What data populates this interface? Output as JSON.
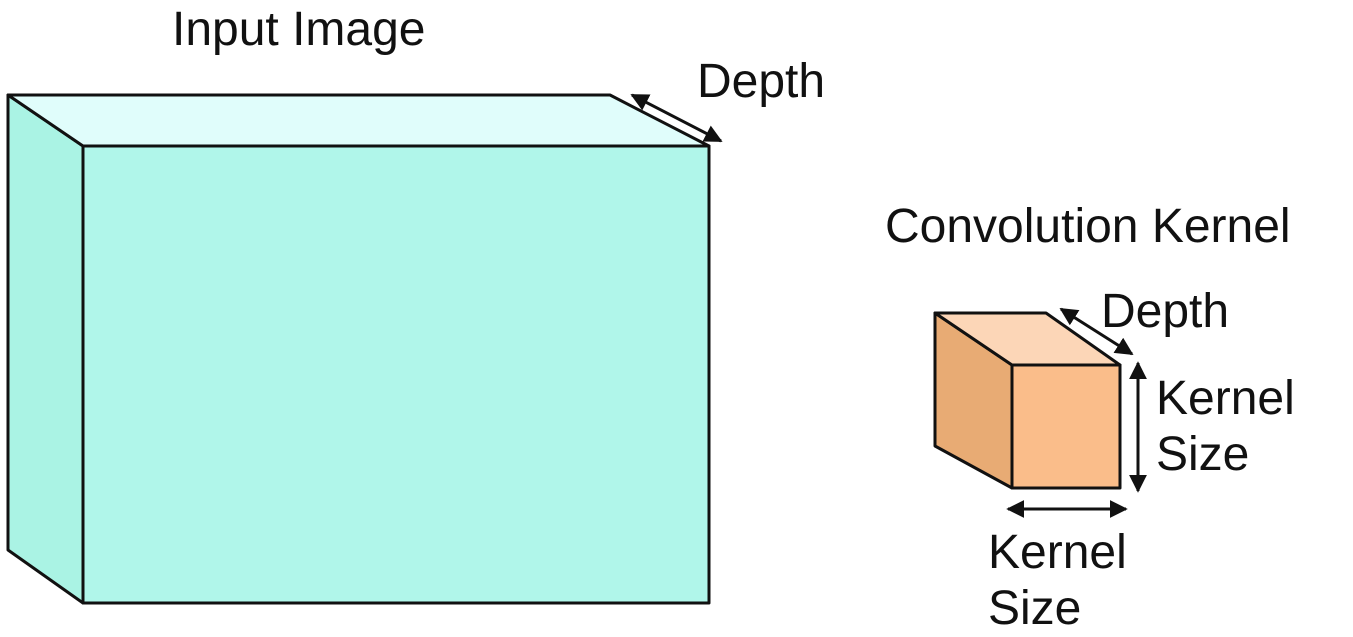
{
  "input_image": {
    "title": "Input Image",
    "depth_label": "Depth",
    "colors": {
      "front": "#b0f6ea",
      "top": "#e0fdfb",
      "side": "#aaf3e4"
    }
  },
  "kernel": {
    "title": "Convolution Kernel",
    "depth_label": "Depth",
    "height_label": [
      "Kernel",
      "Size"
    ],
    "width_label": [
      "Kernel",
      "Size"
    ],
    "colors": {
      "front": "#fabd8a",
      "top": "#fcd6b7",
      "side": "#e8ab74"
    }
  },
  "colors": {
    "outline": "#111111",
    "text": "#111111"
  }
}
